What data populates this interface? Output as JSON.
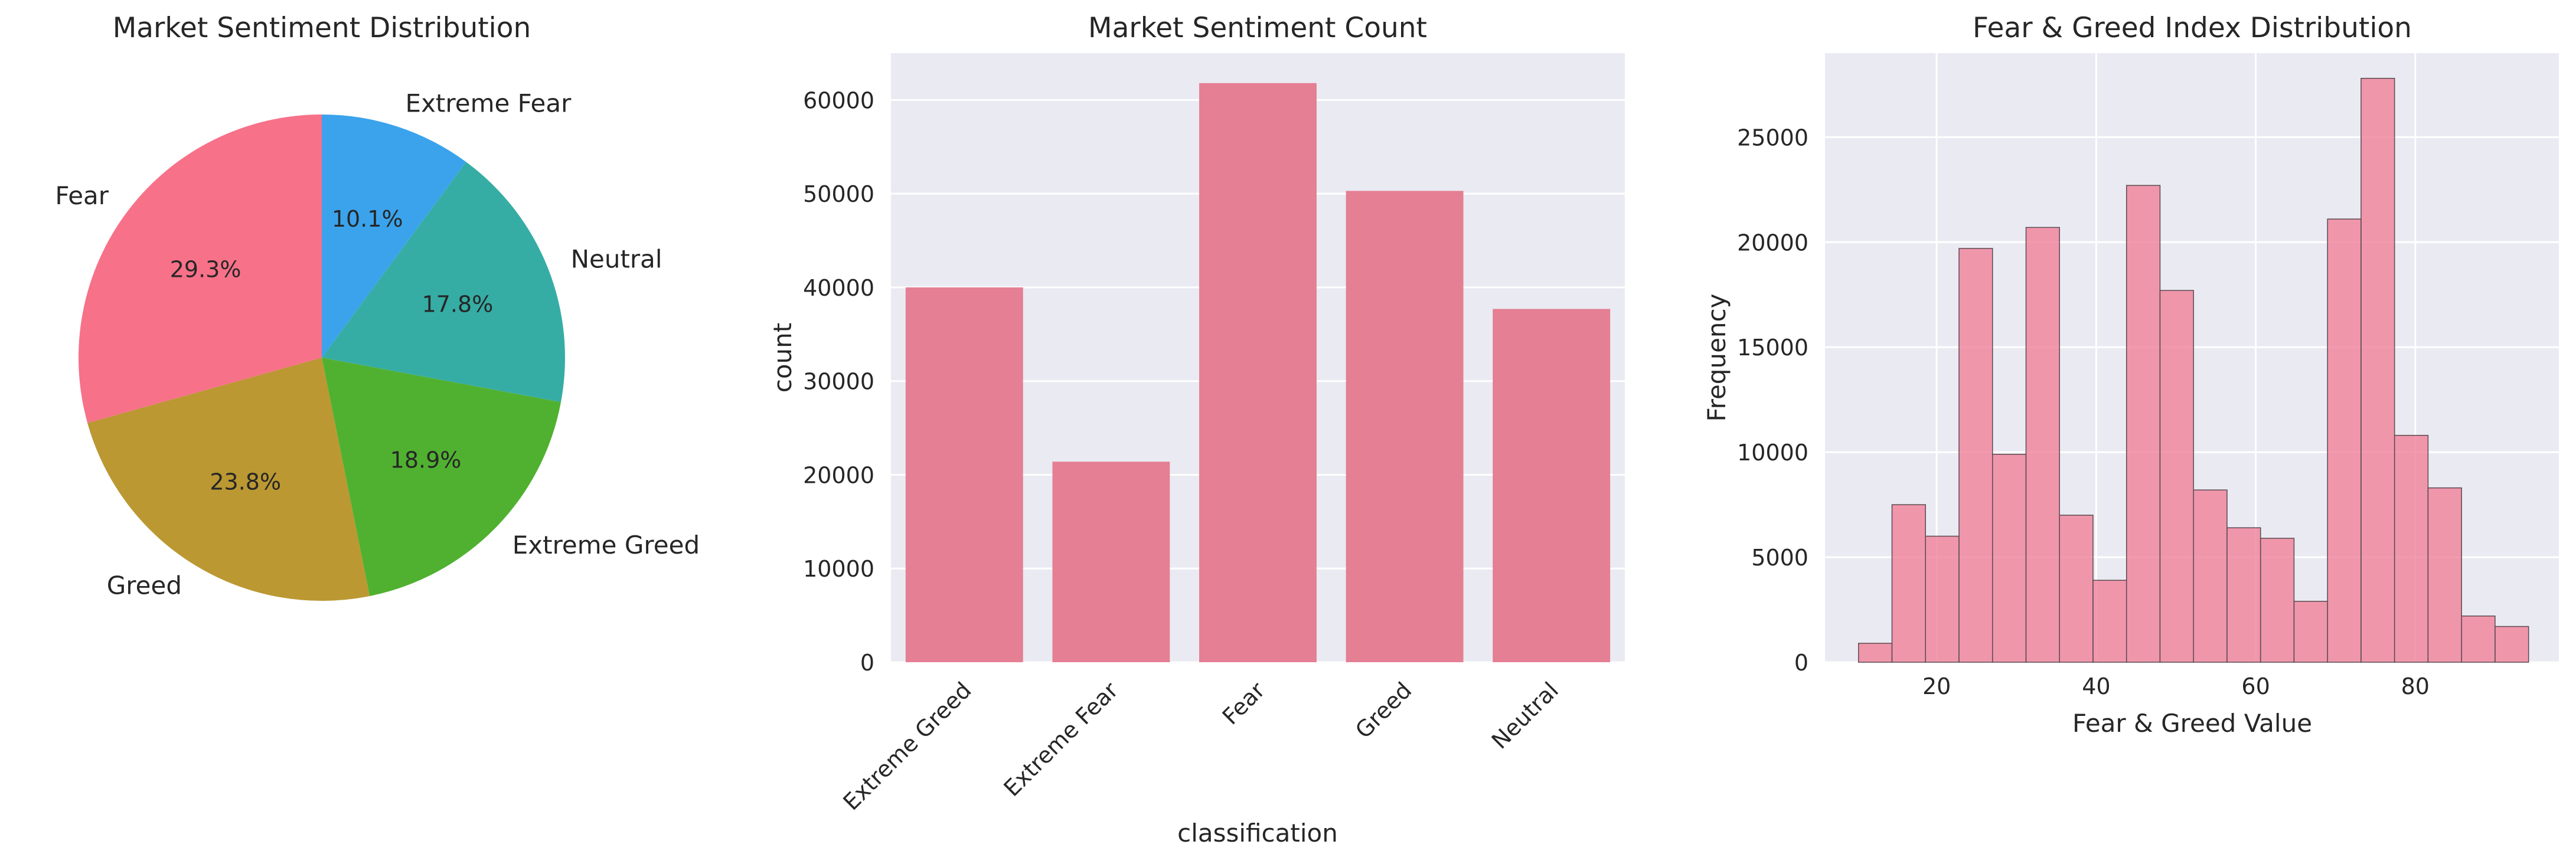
{
  "chart_data": [
    {
      "type": "pie",
      "title": "Market Sentiment Distribution",
      "slices": [
        {
          "label": "Extreme Fear",
          "value": 10.1,
          "pct_label": "10.1%",
          "color": "#3ba3ec"
        },
        {
          "label": "Neutral",
          "value": 17.8,
          "pct_label": "17.8%",
          "color": "#36ada4"
        },
        {
          "label": "Extreme Greed",
          "value": 18.9,
          "pct_label": "18.9%",
          "color": "#50b131"
        },
        {
          "label": "Greed",
          "value": 23.8,
          "pct_label": "23.8%",
          "color": "#bb9832"
        },
        {
          "label": "Fear",
          "value": 29.3,
          "pct_label": "29.3%",
          "color": "#f77189"
        }
      ],
      "start_angle_deg": 90,
      "direction": "clockwise"
    },
    {
      "type": "bar",
      "title": "Market Sentiment Count",
      "xlabel": "classification",
      "ylabel": "count",
      "categories": [
        "Extreme Greed",
        "Extreme Fear",
        "Fear",
        "Greed",
        "Neutral"
      ],
      "values": [
        40000,
        21400,
        61800,
        50300,
        37700
      ],
      "ylim": [
        0,
        65000
      ],
      "yticks": [
        0,
        10000,
        20000,
        30000,
        40000,
        50000,
        60000
      ],
      "grid": true,
      "color": "#e57f93",
      "background": "#eaeaf2"
    },
    {
      "type": "histogram",
      "title": "Fear & Greed Index Distribution",
      "xlabel": "Fear & Greed Value",
      "ylabel": "Frequency",
      "bin_edges": [
        10.2,
        14.4,
        18.6,
        22.8,
        27.0,
        31.2,
        35.4,
        39.6,
        43.8,
        48.0,
        52.2,
        56.4,
        60.6,
        64.8,
        69.0,
        73.2,
        77.4,
        81.6,
        85.8,
        90.0,
        94.2
      ],
      "counts": [
        900,
        7500,
        6000,
        19700,
        9900,
        20700,
        7000,
        3900,
        22700,
        17700,
        8200,
        6400,
        5900,
        2900,
        21100,
        27800,
        10800,
        8300,
        2200,
        1700
      ],
      "xlim": [
        6,
        98
      ],
      "ylim": [
        0,
        29000
      ],
      "xticks": [
        20,
        40,
        60,
        80
      ],
      "yticks": [
        0,
        5000,
        10000,
        15000,
        20000,
        25000
      ],
      "grid": true,
      "color": "#f07e97",
      "background": "#eaeaf2"
    }
  ]
}
